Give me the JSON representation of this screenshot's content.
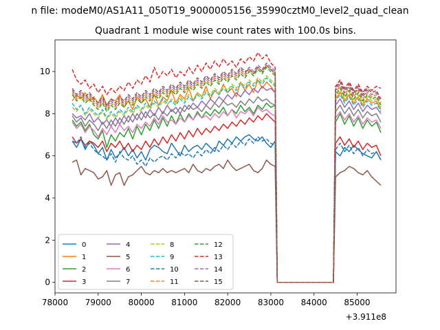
{
  "figure_title": "n file: modeM0/AS1A11_050T19_9000005156_35990cztM0_level2_quad_clean",
  "chart_data": {
    "type": "line",
    "title": "Quadrant 1 module wise count rates with 100.0s bins.",
    "xlabel": "",
    "ylabel": "",
    "x_offset_label": "+3.911e8",
    "xlim": [
      78000,
      85900
    ],
    "ylim": [
      -0.5,
      11.5
    ],
    "x_ticks": [
      78000,
      79000,
      80000,
      81000,
      82000,
      83000,
      84000,
      85000
    ],
    "y_ticks": [
      0,
      2,
      4,
      6,
      8,
      10
    ],
    "grid": false,
    "legend": {
      "placement": "lower-left",
      "ncol": 4
    },
    "segments": [
      [
        78400,
        83100
      ],
      [
        84500,
        85550
      ]
    ],
    "gap": [
      83150,
      84450
    ],
    "series": [
      {
        "name": "0",
        "color": "#1f77b4",
        "dash": "solid",
        "seg1": [
          6.7,
          6.4,
          6.8,
          6.3,
          6.7,
          6.5,
          6.1,
          6.4,
          5.8,
          6.3,
          5.9,
          6.1,
          6.4,
          6.0,
          6.3,
          5.9,
          6.2,
          5.8,
          6.3,
          6.5,
          6.4,
          6.2,
          6.1,
          6.6,
          6.3,
          6.0,
          6.5,
          6.2,
          6.4,
          6.5,
          6.3,
          6.6,
          6.4,
          6.2,
          6.7,
          6.5,
          6.8,
          6.6,
          6.9,
          6.7,
          6.9,
          7.0,
          6.8,
          6.7,
          6.9,
          6.6,
          6.4,
          6.7
        ],
        "seg2": [
          6.2,
          6.0,
          6.4,
          6.2,
          6.5,
          6.3,
          6.1,
          6.0,
          5.9,
          6.2,
          5.8
        ]
      },
      {
        "name": "1",
        "color": "#ff7f0e",
        "dash": "solid",
        "seg1": [
          8.6,
          8.9,
          8.7,
          9.0,
          8.6,
          8.8,
          8.5,
          8.9,
          8.4,
          8.7,
          8.6,
          8.9,
          8.3,
          8.6,
          8.2,
          8.8,
          8.5,
          8.7,
          8.3,
          8.9,
          8.4,
          8.8,
          8.6,
          9.1,
          8.5,
          8.9,
          8.7,
          9.2,
          8.6,
          9.0,
          8.8,
          9.3,
          8.7,
          9.1,
          8.9,
          9.4,
          9.0,
          9.2,
          8.8,
          9.5,
          9.1,
          9.4,
          9.0,
          9.6,
          9.2,
          9.5,
          9.3,
          9.0
        ],
        "seg2": [
          8.7,
          9.0,
          8.6,
          8.9,
          8.5,
          8.8,
          8.4,
          8.7,
          8.5,
          8.6,
          8.2
        ]
      },
      {
        "name": "2",
        "color": "#2ca02c",
        "dash": "solid",
        "seg1": [
          7.7,
          7.4,
          7.6,
          7.2,
          7.5,
          7.0,
          6.8,
          7.2,
          6.4,
          7.0,
          6.7,
          7.1,
          6.9,
          7.3,
          6.8,
          7.4,
          7.0,
          7.5,
          7.2,
          7.7,
          7.3,
          7.8,
          7.4,
          7.9,
          7.5,
          8.0,
          7.6,
          8.0,
          7.7,
          8.1,
          7.8,
          8.1,
          7.9,
          8.2,
          8.0,
          8.3,
          7.9,
          8.2,
          8.0,
          8.4,
          8.1,
          8.3,
          8.0,
          8.4,
          8.2,
          8.5,
          8.3,
          8.4
        ],
        "seg2": [
          7.6,
          8.0,
          7.5,
          7.9,
          7.4,
          7.8,
          7.3,
          7.7,
          7.4,
          7.6,
          7.1
        ]
      },
      {
        "name": "3",
        "color": "#d62728",
        "dash": "solid",
        "seg1": [
          6.9,
          6.6,
          6.8,
          6.5,
          6.7,
          6.6,
          6.4,
          6.7,
          6.2,
          6.6,
          6.4,
          6.7,
          6.3,
          6.6,
          6.2,
          6.5,
          6.3,
          6.7,
          6.4,
          6.8,
          6.5,
          6.9,
          6.6,
          7.0,
          6.7,
          7.1,
          6.8,
          7.2,
          6.9,
          7.3,
          7.0,
          7.3,
          7.1,
          7.4,
          7.2,
          7.5,
          7.3,
          7.6,
          7.4,
          7.7,
          7.5,
          7.8,
          7.6,
          7.9,
          7.7,
          8.0,
          7.8,
          7.6
        ],
        "seg2": [
          6.6,
          6.9,
          6.5,
          6.8,
          6.4,
          6.7,
          6.3,
          6.6,
          6.4,
          6.5,
          6.0
        ]
      },
      {
        "name": "4",
        "color": "#9467bd",
        "dash": "solid",
        "seg1": [
          8.0,
          7.8,
          7.9,
          7.7,
          8.0,
          7.6,
          7.8,
          7.5,
          7.7,
          7.4,
          7.8,
          7.5,
          7.9,
          7.6,
          8.0,
          7.7,
          8.1,
          7.8,
          8.2,
          7.9,
          8.3,
          8.0,
          8.4,
          8.1,
          8.3,
          8.0,
          8.4,
          8.2,
          8.5,
          8.3,
          8.6,
          8.4,
          8.7,
          8.5,
          8.8,
          8.6,
          8.9,
          8.7,
          9.0,
          8.8,
          9.1,
          8.9,
          9.2,
          9.0,
          9.3,
          9.1,
          9.2,
          9.0
        ],
        "seg2": [
          8.4,
          8.7,
          8.3,
          8.6,
          8.2,
          8.5,
          8.1,
          8.4,
          8.2,
          8.3,
          8.0
        ]
      },
      {
        "name": "5",
        "color": "#8c564b",
        "dash": "solid",
        "seg1": [
          5.7,
          5.8,
          5.1,
          5.4,
          5.3,
          5.2,
          4.9,
          5.0,
          5.3,
          4.6,
          5.1,
          5.2,
          4.6,
          5.0,
          5.1,
          5.3,
          5.5,
          5.2,
          5.1,
          5.3,
          5.2,
          5.4,
          5.2,
          5.3,
          5.2,
          5.3,
          5.4,
          5.2,
          5.6,
          5.3,
          5.2,
          5.4,
          5.3,
          5.5,
          5.6,
          5.4,
          5.8,
          5.5,
          5.3,
          5.4,
          5.5,
          5.6,
          5.3,
          5.2,
          5.4,
          5.8,
          5.6,
          5.5
        ],
        "seg2": [
          5.0,
          5.2,
          5.3,
          5.5,
          5.4,
          5.2,
          5.1,
          5.3,
          5.0,
          4.8,
          4.6
        ]
      },
      {
        "name": "6",
        "color": "#e377c2",
        "dash": "solid",
        "seg1": [
          7.6,
          7.3,
          7.5,
          7.1,
          7.4,
          7.2,
          6.9,
          7.3,
          7.0,
          7.4,
          7.1,
          7.5,
          7.2,
          7.4,
          7.1,
          7.5,
          7.3,
          7.6,
          7.4,
          7.8,
          7.5,
          7.9,
          7.6,
          7.7,
          7.5,
          7.8,
          7.6,
          7.9,
          7.7,
          8.0,
          7.8,
          7.9,
          7.7,
          8.0,
          7.8,
          8.1,
          7.9,
          8.2,
          7.8,
          8.1,
          8.0,
          8.2,
          7.9,
          8.3,
          8.1,
          8.2,
          8.0,
          7.9
        ],
        "seg2": [
          7.8,
          8.1,
          7.7,
          8.0,
          7.6,
          7.9,
          7.5,
          7.8,
          7.6,
          7.7,
          7.3
        ]
      },
      {
        "name": "7",
        "color": "#7f7f7f",
        "dash": "solid",
        "seg1": [
          7.9,
          7.6,
          7.8,
          7.4,
          7.7,
          7.5,
          7.2,
          7.6,
          7.3,
          7.7,
          7.4,
          7.8,
          7.5,
          7.9,
          7.6,
          8.0,
          7.7,
          8.1,
          7.8,
          8.0,
          7.7,
          8.1,
          7.9,
          8.2,
          8.0,
          8.3,
          8.1,
          8.4,
          8.2,
          8.3,
          8.1,
          8.4,
          8.2,
          8.5,
          8.3,
          8.6,
          8.4,
          8.5,
          8.3,
          8.6,
          8.4,
          8.7,
          8.5,
          8.8,
          8.6,
          8.7,
          8.5,
          8.4
        ],
        "seg2": [
          8.1,
          8.4,
          8.0,
          8.3,
          7.9,
          8.2,
          7.8,
          8.1,
          7.9,
          8.0,
          7.6
        ]
      },
      {
        "name": "8",
        "color": "#bcbd22",
        "dash": "dashed",
        "seg1": [
          8.3,
          8.1,
          8.4,
          7.9,
          8.2,
          8.0,
          7.8,
          8.1,
          7.7,
          8.0,
          7.8,
          8.1,
          7.9,
          8.2,
          8.0,
          8.3,
          8.1,
          8.4,
          8.2,
          8.5,
          8.3,
          8.6,
          8.4,
          8.7,
          8.5,
          8.8,
          8.6,
          8.9,
          8.7,
          9.0,
          8.8,
          9.1,
          8.9,
          9.2,
          9.0,
          9.3,
          9.1,
          9.4,
          9.2,
          9.5,
          9.3,
          9.6,
          9.4,
          9.7,
          9.5,
          9.8,
          9.6,
          9.4
        ],
        "seg2": [
          8.8,
          9.1,
          8.7,
          9.0,
          8.6,
          8.9,
          8.5,
          8.8,
          8.6,
          8.7,
          8.3
        ]
      },
      {
        "name": "9",
        "color": "#17becf",
        "dash": "dashed",
        "seg1": [
          8.5,
          8.2,
          8.4,
          8.0,
          8.3,
          8.1,
          7.9,
          8.2,
          7.8,
          8.1,
          7.9,
          8.2,
          8.0,
          8.3,
          8.1,
          8.4,
          8.2,
          8.5,
          8.3,
          8.6,
          8.4,
          8.7,
          8.5,
          8.6,
          8.4,
          8.7,
          8.5,
          8.8,
          8.6,
          8.9,
          8.7,
          9.0,
          8.8,
          9.1,
          8.9,
          9.2,
          9.0,
          9.3,
          9.1,
          9.4,
          9.2,
          9.5,
          9.3,
          9.6,
          9.4,
          9.7,
          9.5,
          9.3
        ],
        "seg2": [
          8.6,
          8.9,
          8.5,
          8.8,
          8.4,
          8.7,
          8.3,
          8.6,
          8.4,
          8.5,
          8.1
        ]
      },
      {
        "name": "10",
        "color": "#1f77b4",
        "dash": "dashed",
        "seg1": [
          6.7,
          6.6,
          6.9,
          6.4,
          6.6,
          6.3,
          6.1,
          6.0,
          5.8,
          6.1,
          5.7,
          6.2,
          5.9,
          5.8,
          6.0,
          5.6,
          5.8,
          5.5,
          5.9,
          5.7,
          5.9,
          6.0,
          5.8,
          6.1,
          5.9,
          6.2,
          6.0,
          6.1,
          5.9,
          6.2,
          6.0,
          6.3,
          6.1,
          6.4,
          6.2,
          6.5,
          6.3,
          6.6,
          6.4,
          6.7,
          6.5,
          6.8,
          6.6,
          6.9,
          6.7,
          6.8,
          6.6,
          6.5
        ],
        "seg2": [
          6.3,
          6.6,
          6.2,
          6.5,
          6.1,
          6.4,
          6.0,
          6.3,
          6.1,
          6.2,
          5.8
        ]
      },
      {
        "name": "11",
        "color": "#ff7f0e",
        "dash": "dashed",
        "seg1": [
          9.0,
          8.7,
          8.9,
          8.6,
          8.8,
          8.5,
          8.3,
          8.6,
          8.2,
          8.5,
          8.3,
          8.6,
          8.4,
          8.7,
          8.5,
          8.8,
          8.6,
          8.9,
          8.7,
          9.0,
          8.8,
          9.1,
          8.9,
          9.2,
          9.0,
          9.3,
          9.1,
          9.4,
          9.2,
          9.5,
          9.3,
          9.6,
          9.4,
          9.7,
          9.5,
          9.8,
          9.6,
          9.9,
          9.7,
          10.0,
          9.8,
          10.1,
          9.9,
          10.2,
          10.0,
          10.3,
          10.1,
          9.9
        ],
        "seg2": [
          9.0,
          9.3,
          8.9,
          9.2,
          8.8,
          9.1,
          8.7,
          9.0,
          8.8,
          8.9,
          8.5
        ]
      },
      {
        "name": "12",
        "color": "#2ca02c",
        "dash": "dashed",
        "seg1": [
          8.9,
          8.6,
          8.8,
          8.5,
          8.7,
          8.4,
          8.2,
          8.5,
          8.1,
          8.4,
          8.2,
          8.5,
          8.3,
          8.6,
          8.4,
          8.7,
          8.5,
          8.8,
          8.6,
          8.9,
          8.7,
          9.0,
          8.8,
          9.1,
          8.9,
          9.2,
          9.0,
          9.3,
          9.1,
          9.4,
          9.2,
          9.5,
          9.3,
          9.6,
          9.4,
          9.7,
          9.5,
          9.8,
          9.6,
          9.9,
          9.7,
          10.0,
          9.8,
          10.1,
          9.9,
          10.2,
          10.0,
          9.8
        ],
        "seg2": [
          8.9,
          9.2,
          8.8,
          9.1,
          8.7,
          9.0,
          8.6,
          8.9,
          8.7,
          8.8,
          8.4
        ]
      },
      {
        "name": "13",
        "color": "#d62728",
        "dash": "dashed",
        "seg1": [
          10.1,
          9.6,
          9.4,
          9.6,
          9.2,
          9.4,
          9.0,
          9.3,
          8.9,
          9.2,
          9.0,
          9.3,
          9.1,
          9.5,
          9.2,
          9.6,
          9.4,
          9.8,
          9.5,
          10.2,
          9.7,
          10.0,
          9.8,
          10.1,
          9.7,
          10.0,
          9.8,
          10.2,
          9.9,
          10.3,
          10.0,
          10.4,
          10.1,
          10.5,
          10.2,
          10.6,
          10.3,
          10.5,
          10.2,
          10.6,
          10.4,
          10.7,
          10.5,
          10.9,
          10.6,
          10.8,
          10.4,
          10.2
        ],
        "seg2": [
          9.3,
          9.6,
          9.2,
          9.5,
          9.1,
          9.4,
          9.0,
          9.3,
          9.1,
          9.3,
          9.2
        ]
      },
      {
        "name": "14",
        "color": "#9467bd",
        "dash": "dashed",
        "seg1": [
          9.1,
          8.8,
          9.0,
          8.7,
          8.9,
          8.6,
          8.4,
          8.7,
          8.3,
          8.6,
          8.4,
          8.7,
          8.5,
          8.8,
          8.6,
          8.9,
          8.7,
          9.0,
          8.8,
          9.1,
          8.9,
          9.2,
          9.0,
          9.3,
          9.1,
          9.4,
          9.2,
          9.5,
          9.3,
          9.6,
          9.4,
          9.7,
          9.5,
          9.8,
          9.6,
          9.9,
          9.7,
          10.0,
          9.8,
          10.1,
          9.9,
          10.2,
          10.0,
          10.3,
          10.1,
          10.4,
          10.2,
          10.0
        ],
        "seg2": [
          9.1,
          9.4,
          9.0,
          9.3,
          8.9,
          9.2,
          8.8,
          9.1,
          8.9,
          9.0,
          8.6
        ]
      },
      {
        "name": "15",
        "color": "#8c564b",
        "dash": "dashed",
        "seg1": [
          9.2,
          8.9,
          9.1,
          8.8,
          9.0,
          8.7,
          8.5,
          8.8,
          8.4,
          8.7,
          8.5,
          8.8,
          8.6,
          8.9,
          8.7,
          9.0,
          8.8,
          9.1,
          8.9,
          9.2,
          9.0,
          9.3,
          9.1,
          9.4,
          9.2,
          9.5,
          9.3,
          9.6,
          9.4,
          9.7,
          9.5,
          9.8,
          9.6,
          9.9,
          9.7,
          10.0,
          9.8,
          10.1,
          9.9,
          10.2,
          10.0,
          10.1,
          9.9,
          10.2,
          10.0,
          10.3,
          10.1,
          9.9
        ],
        "seg2": [
          9.2,
          9.5,
          9.1,
          9.4,
          9.0,
          9.3,
          8.9,
          9.2,
          9.0,
          9.1,
          8.7
        ]
      }
    ]
  }
}
